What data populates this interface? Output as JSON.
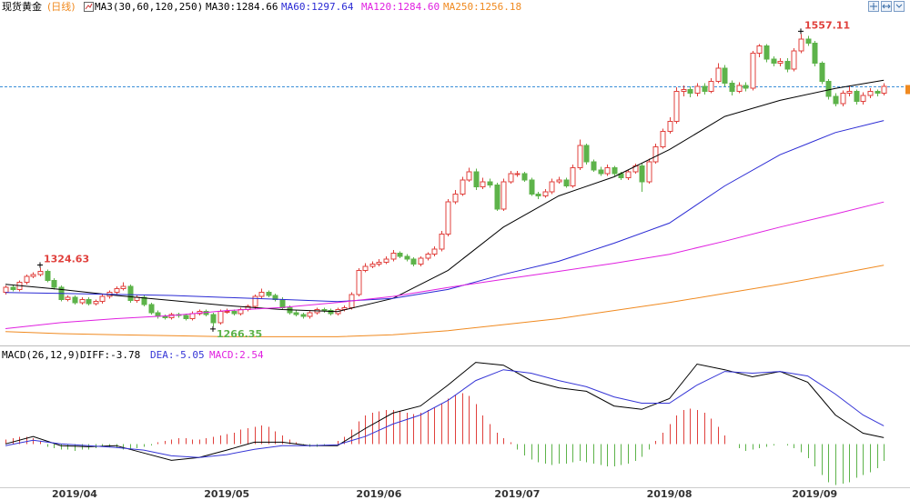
{
  "chart_data": [
    {
      "type": "candlestick",
      "title": "现货黄金",
      "period": "(日线)",
      "indicator": "MA3(30,60,120,250)",
      "ylim": [
        1250,
        1580
      ],
      "up_color": "#e0403c",
      "down_color": "#5db34a",
      "last_line_color": "#3a8fd8",
      "high_marks": [
        5,
        115
      ],
      "low_marks": [
        30
      ],
      "open": [
        1300,
        1305,
        1303,
        1310,
        1316,
        1318,
        1321,
        1312,
        1305,
        1293,
        1295,
        1290,
        1293,
        1289,
        1291,
        1296,
        1300,
        1304,
        1306,
        1292,
        1295,
        1288,
        1280,
        1276,
        1275,
        1278,
        1277,
        1274,
        1279,
        1281,
        1278,
        1270,
        1281,
        1281,
        1279,
        1283,
        1286,
        1296,
        1300,
        1297,
        1293,
        1285,
        1280,
        1278,
        1276,
        1280,
        1283,
        1282,
        1279,
        1283,
        1285,
        1298,
        1322,
        1326,
        1328,
        1330,
        1333,
        1339,
        1336,
        1333,
        1328,
        1334,
        1338,
        1343,
        1358,
        1390,
        1398,
        1412,
        1420,
        1405,
        1410,
        1407,
        1383,
        1410,
        1418,
        1418,
        1412,
        1398,
        1396,
        1400,
        1410,
        1412,
        1406,
        1424,
        1446,
        1430,
        1422,
        1418,
        1424,
        1418,
        1414,
        1420,
        1426,
        1410,
        1430,
        1445,
        1460,
        1470,
        1500,
        1502,
        1498,
        1505,
        1500,
        1510,
        1523,
        1508,
        1500,
        1506,
        1503,
        1538,
        1545,
        1532,
        1528,
        1530,
        1522,
        1540,
        1552,
        1548,
        1528,
        1510,
        1495,
        1488,
        1498,
        1500,
        1490,
        1496,
        1500,
        1498
      ],
      "high": [
        1307,
        1307,
        1312,
        1318,
        1320,
        1324.63,
        1323,
        1314,
        1307,
        1297,
        1297,
        1295,
        1295,
        1293,
        1298,
        1302,
        1306,
        1310,
        1308,
        1297,
        1297,
        1290,
        1282,
        1278,
        1280,
        1280,
        1279,
        1281,
        1283,
        1283,
        1280,
        1283,
        1284,
        1283,
        1285,
        1288,
        1298,
        1304,
        1302,
        1299,
        1295,
        1287,
        1282,
        1280,
        1282,
        1285,
        1285,
        1284,
        1285,
        1287,
        1300,
        1324,
        1329,
        1331,
        1333,
        1336,
        1342,
        1341,
        1338,
        1335,
        1336,
        1340,
        1346,
        1361,
        1393,
        1402,
        1415,
        1424,
        1423,
        1414,
        1413,
        1409,
        1413,
        1421,
        1421,
        1420,
        1414,
        1400,
        1403,
        1413,
        1415,
        1414,
        1427,
        1452,
        1448,
        1432,
        1425,
        1427,
        1426,
        1420,
        1422,
        1428,
        1428,
        1433,
        1448,
        1463,
        1474,
        1504,
        1506,
        1505,
        1508,
        1508,
        1513,
        1528,
        1526,
        1511,
        1509,
        1509,
        1540,
        1547,
        1547,
        1535,
        1533,
        1533,
        1543,
        1557.11,
        1555,
        1550,
        1530,
        1512,
        1498,
        1501,
        1506,
        1502,
        1499,
        1503,
        1502,
        1508
      ],
      "low": [
        1298,
        1301,
        1301,
        1308,
        1314,
        1316,
        1310,
        1303,
        1291,
        1291,
        1288,
        1288,
        1287,
        1287,
        1289,
        1294,
        1298,
        1302,
        1290,
        1290,
        1286,
        1278,
        1274,
        1273,
        1273,
        1275,
        1272,
        1272,
        1277,
        1276,
        1266.35,
        1268,
        1279,
        1277,
        1277,
        1281,
        1284,
        1294,
        1295,
        1291,
        1283,
        1278,
        1276,
        1274,
        1274,
        1278,
        1280,
        1277,
        1277,
        1281,
        1283,
        1296,
        1320,
        1324,
        1326,
        1328,
        1331,
        1334,
        1331,
        1326,
        1326,
        1332,
        1336,
        1341,
        1356,
        1388,
        1396,
        1410,
        1402,
        1403,
        1404,
        1381,
        1381,
        1408,
        1415,
        1410,
        1396,
        1393,
        1394,
        1398,
        1408,
        1404,
        1404,
        1422,
        1427,
        1420,
        1416,
        1416,
        1416,
        1412,
        1412,
        1418,
        1400,
        1408,
        1428,
        1443,
        1458,
        1468,
        1495,
        1494,
        1495,
        1497,
        1498,
        1508,
        1505,
        1496,
        1498,
        1500,
        1501,
        1534,
        1529,
        1525,
        1525,
        1519,
        1520,
        1538,
        1545,
        1525,
        1507,
        1492,
        1485,
        1485,
        1495,
        1487,
        1487,
        1493,
        1495,
        1496
      ],
      "close": [
        1305,
        1303,
        1310,
        1316,
        1318,
        1321,
        1312,
        1305,
        1293,
        1295,
        1290,
        1293,
        1289,
        1291,
        1296,
        1300,
        1304,
        1306,
        1292,
        1295,
        1288,
        1280,
        1276,
        1275,
        1278,
        1277,
        1274,
        1279,
        1281,
        1278,
        1270,
        1281,
        1281,
        1279,
        1283,
        1286,
        1296,
        1300,
        1297,
        1293,
        1285,
        1280,
        1278,
        1276,
        1280,
        1283,
        1282,
        1279,
        1283,
        1285,
        1298,
        1322,
        1326,
        1328,
        1330,
        1333,
        1339,
        1336,
        1333,
        1328,
        1334,
        1338,
        1343,
        1358,
        1390,
        1398,
        1412,
        1420,
        1405,
        1410,
        1407,
        1383,
        1410,
        1418,
        1418,
        1412,
        1398,
        1396,
        1400,
        1410,
        1412,
        1406,
        1424,
        1446,
        1430,
        1422,
        1418,
        1424,
        1418,
        1414,
        1420,
        1426,
        1410,
        1430,
        1445,
        1460,
        1470,
        1500,
        1502,
        1498,
        1505,
        1500,
        1510,
        1523,
        1508,
        1500,
        1506,
        1503,
        1538,
        1545,
        1532,
        1528,
        1530,
        1522,
        1540,
        1552,
        1548,
        1528,
        1510,
        1495,
        1488,
        1498,
        1500,
        1490,
        1496,
        1500,
        1498,
        1505
      ],
      "series": [
        {
          "legend": "MA30:1284.66",
          "color": "#000000",
          "x": [
            0,
            8,
            16,
            24,
            32,
            40,
            48,
            56,
            64,
            72,
            80,
            88,
            96,
            104,
            112,
            120,
            127
          ],
          "values": [
            1308,
            1303,
            1297,
            1292,
            1287,
            1283,
            1281,
            1294,
            1322,
            1365,
            1396,
            1415,
            1442,
            1475,
            1491,
            1503,
            1511
          ]
        },
        {
          "legend": "MA60:1297.64",
          "color": "#2a2ad4",
          "x": [
            0,
            8,
            16,
            24,
            32,
            40,
            48,
            56,
            64,
            72,
            80,
            88,
            96,
            104,
            112,
            120,
            127
          ],
          "values": [
            1300,
            1299,
            1298,
            1297,
            1295,
            1293,
            1291,
            1294,
            1303,
            1318,
            1331,
            1349,
            1369,
            1406,
            1437,
            1459,
            1471
          ]
        },
        {
          "legend": "MA120:1284.60",
          "color": "#e020e0",
          "x": [
            0,
            8,
            16,
            24,
            32,
            40,
            48,
            56,
            64,
            72,
            80,
            88,
            96,
            104,
            112,
            120,
            127
          ],
          "values": [
            1264,
            1270,
            1274,
            1277,
            1282,
            1285,
            1290,
            1296,
            1305,
            1313,
            1321,
            1329,
            1338,
            1351,
            1365,
            1378,
            1390
          ]
        },
        {
          "legend": "MA250:1256.18",
          "color": "#f08a20",
          "x": [
            0,
            8,
            16,
            24,
            32,
            40,
            48,
            56,
            64,
            72,
            80,
            88,
            96,
            104,
            112,
            120,
            127
          ],
          "values": [
            1261,
            1259,
            1258,
            1257,
            1256,
            1256,
            1256,
            1258,
            1262,
            1268,
            1274,
            1282,
            1290,
            1299,
            1308,
            1318,
            1327
          ]
        }
      ]
    },
    {
      "type": "macd",
      "title": "MACD(26,12,9)",
      "ylim": [
        -15,
        29
      ],
      "up_color": "#e0403c",
      "down_color": "#5db34a",
      "bar_legend": "MACD:2.54",
      "bar_legend_color": "#e020e0",
      "categories": [
        null,
        null,
        null,
        null,
        null,
        null,
        null,
        null,
        null,
        null,
        "2019/04",
        null,
        null,
        null,
        null,
        null,
        null,
        null,
        null,
        null,
        null,
        null,
        null,
        null,
        null,
        null,
        null,
        null,
        null,
        null,
        null,
        null,
        "2019/05",
        null,
        null,
        null,
        null,
        null,
        null,
        null,
        null,
        null,
        null,
        null,
        null,
        null,
        null,
        null,
        null,
        null,
        null,
        null,
        null,
        null,
        "2019/06",
        null,
        null,
        null,
        null,
        null,
        null,
        null,
        null,
        null,
        null,
        null,
        null,
        null,
        null,
        null,
        null,
        null,
        null,
        null,
        "2019/07",
        null,
        null,
        null,
        null,
        null,
        null,
        null,
        null,
        null,
        null,
        null,
        null,
        null,
        null,
        null,
        null,
        null,
        null,
        null,
        null,
        null,
        "2019/08",
        null,
        null,
        null,
        null,
        null,
        null,
        null,
        null,
        null,
        null,
        null,
        null,
        null,
        null,
        null,
        null,
        null,
        null,
        null,
        null,
        "2019/09",
        null,
        null,
        null,
        null,
        null,
        null,
        null,
        null,
        null,
        null
      ],
      "values": [
        1.5,
        2,
        2.5,
        2.5,
        2,
        1,
        -1,
        -1.5,
        -2,
        -2,
        -2.5,
        -2,
        -2,
        -1.5,
        -1,
        -1,
        -1.5,
        -2,
        -2,
        -1.5,
        -1,
        -0.5,
        0.5,
        1,
        1.5,
        2,
        2,
        1.5,
        1.5,
        2,
        2.5,
        3,
        3.5,
        4,
        5,
        5.5,
        6,
        6.5,
        6,
        4.5,
        3,
        1.5,
        0.5,
        -0.5,
        -1,
        -1,
        -0.5,
        0,
        1,
        2.5,
        5,
        8,
        10,
        11,
        11.5,
        12,
        12,
        11.5,
        11,
        10.5,
        11,
        12,
        13,
        14,
        16,
        17.5,
        18,
        17,
        14,
        10,
        7,
        4,
        2,
        0.5,
        -2,
        -4,
        -5.5,
        -6.5,
        -7,
        -7.5,
        -7,
        -7,
        -6.5,
        -6,
        -6.5,
        -7,
        -7.5,
        -8,
        -8,
        -7.5,
        -7,
        -6,
        -4.5,
        -2,
        1,
        4,
        7,
        10,
        12,
        12.5,
        12,
        11,
        9,
        6,
        3,
        0,
        -1.5,
        -2.5,
        -2,
        -1.5,
        -1,
        -0.5,
        0,
        -0.5,
        -1.5,
        -3,
        -5,
        -8,
        -11,
        -13.5,
        -14.5,
        -14,
        -13.5,
        -12,
        -11,
        -10,
        -8.5,
        -6
      ],
      "series": [
        {
          "legend": "DIFF:-3.78",
          "color": "#000000",
          "x": [
            0,
            4,
            8,
            12,
            16,
            20,
            24,
            28,
            32,
            36,
            40,
            44,
            48,
            52,
            56,
            60,
            64,
            68,
            72,
            76,
            80,
            84,
            88,
            92,
            96,
            100,
            104,
            108,
            112,
            116,
            120,
            124,
            127
          ],
          "values": [
            0,
            2.6,
            -0.6,
            -1,
            -0.6,
            -3.2,
            -5.8,
            -4.8,
            -2.2,
            0.6,
            0.6,
            -0.6,
            -0.6,
            5.4,
            10.9,
            13.4,
            20.8,
            28.8,
            27.8,
            22.4,
            19.8,
            18.6,
            13.4,
            12.2,
            16,
            28.2,
            26.2,
            23.7,
            25.6,
            21.8,
            10.2,
            3.8,
            2.2
          ]
        },
        {
          "legend": "DEA:-5.05",
          "color": "#3535d6",
          "x": [
            0,
            4,
            8,
            12,
            16,
            20,
            24,
            28,
            32,
            36,
            40,
            44,
            48,
            52,
            56,
            60,
            64,
            68,
            72,
            76,
            80,
            84,
            88,
            92,
            96,
            100,
            104,
            108,
            112,
            116,
            120,
            124,
            127
          ],
          "values": [
            -0.6,
            1.3,
            0,
            -0.6,
            -1.3,
            -2.2,
            -4.2,
            -4.8,
            -3.8,
            -1.9,
            -0.6,
            -0.6,
            -0.3,
            2.6,
            7,
            10.2,
            15.4,
            22.4,
            26.2,
            25,
            22.4,
            20.2,
            16.6,
            14.4,
            14.4,
            20.8,
            25.6,
            25,
            25.6,
            24,
            17.6,
            10.2,
            6.4
          ]
        }
      ]
    }
  ]
}
